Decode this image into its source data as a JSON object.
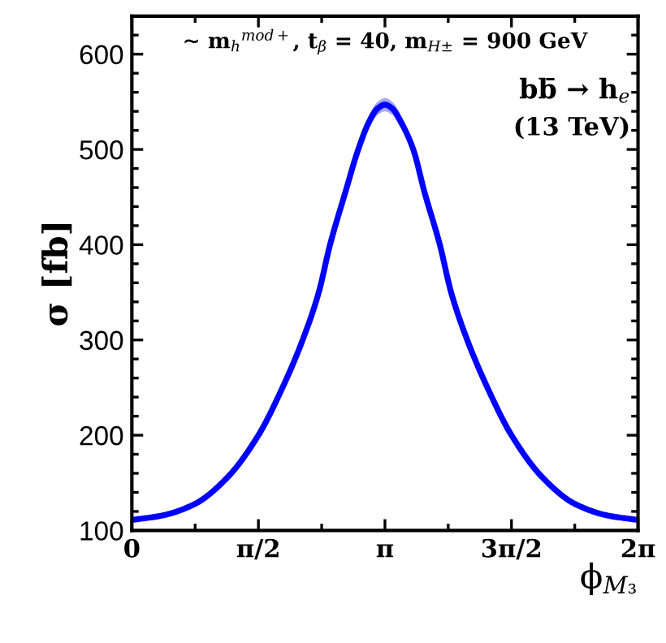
{
  "chart_data": {
    "type": "line",
    "xlabel": "ϕ$_{M₃}$",
    "ylabel": "σ [fb]",
    "annotations": [
      "∼ m$_{h}$$^{mod+}$, t$_{β}$ = 40, m$_{H±}$ = 900 GeV",
      "bb̄ → h$_{e}$",
      "(13 TeV)"
    ],
    "x": [
      0,
      0.3927,
      0.7854,
      1.1781,
      1.5708,
      1.87,
      2.12,
      2.32,
      2.46,
      2.65,
      2.81,
      2.95,
      3.05,
      3.1416,
      3.233,
      3.333,
      3.493,
      3.633,
      3.823,
      3.963,
      4.163,
      4.4132,
      4.7124,
      5.1051,
      5.4978,
      5.8905,
      6.2832
    ],
    "series": [
      {
        "color": "#0000ff",
        "values": [
          111,
          116,
          128,
          155,
          200,
          250,
          300,
          350,
          400,
          455,
          500,
          530,
          543,
          547,
          543,
          530,
          500,
          455,
          400,
          350,
          300,
          250,
          200,
          155,
          128,
          116,
          111
        ],
        "lower": [
          110,
          115,
          127,
          153,
          198,
          247,
          296,
          346,
          395,
          449,
          494,
          523,
          536,
          540,
          536,
          523,
          494,
          449,
          395,
          346,
          296,
          247,
          198,
          153,
          127,
          115,
          110
        ],
        "upper": [
          112,
          117,
          129,
          157,
          202,
          253,
          304,
          354,
          405,
          461,
          506,
          537,
          550,
          554,
          550,
          537,
          506,
          461,
          405,
          354,
          304,
          253,
          202,
          157,
          129,
          117,
          112
        ]
      }
    ],
    "xlim": [
      0,
      6.2832
    ],
    "ylim": [
      100,
      640
    ],
    "xticks": [
      {
        "value": 0,
        "label": "0"
      },
      {
        "value": 1.5708,
        "label": "π/2"
      },
      {
        "value": 3.1416,
        "label": "π"
      },
      {
        "value": 4.7124,
        "label": "3π/2"
      },
      {
        "value": 6.2832,
        "label": "2π"
      }
    ],
    "yticks": [
      100,
      200,
      300,
      400,
      500,
      600
    ],
    "grid": false,
    "legend": false,
    "line_style": "solid",
    "marker": "none"
  }
}
